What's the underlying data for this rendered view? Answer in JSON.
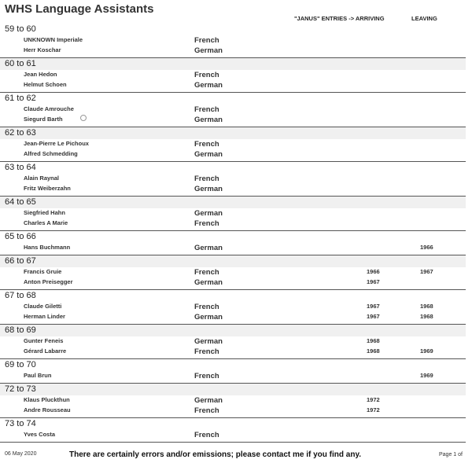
{
  "title": "WHS Language Assistants",
  "columns": {
    "arriving": "\"JANUS\" ENTRIES -> ARRIVING",
    "leaving": "LEAVING"
  },
  "groups": [
    {
      "label": "59 to 60",
      "people": [
        {
          "name": "UNKNOWN  Imperiale",
          "language": "French",
          "arriving": "",
          "leaving": ""
        },
        {
          "name": "Herr  Koschar",
          "language": "German",
          "arriving": "",
          "leaving": ""
        }
      ]
    },
    {
      "label": "60 to 61",
      "people": [
        {
          "name": "Jean  Hedon",
          "language": "French",
          "arriving": "",
          "leaving": ""
        },
        {
          "name": "Helmut  Schoen",
          "language": "German",
          "arriving": "",
          "leaving": ""
        }
      ]
    },
    {
      "label": "61 to 62",
      "people": [
        {
          "name": "Claude  Amrouche",
          "language": "French",
          "arriving": "",
          "leaving": ""
        },
        {
          "name": "Siegurd  Barth",
          "language": "German",
          "arriving": "",
          "leaving": ""
        }
      ]
    },
    {
      "label": "62 to 63",
      "people": [
        {
          "name": "Jean-Pierre  Le Pichoux",
          "language": "French",
          "arriving": "",
          "leaving": ""
        },
        {
          "name": "Alfred  Schmedding",
          "language": "German",
          "arriving": "",
          "leaving": ""
        }
      ]
    },
    {
      "label": "63 to 64",
      "people": [
        {
          "name": "Alain  Raynal",
          "language": "French",
          "arriving": "",
          "leaving": ""
        },
        {
          "name": "Fritz  Weiberzahn",
          "language": "German",
          "arriving": "",
          "leaving": ""
        }
      ]
    },
    {
      "label": "64 to 65",
      "people": [
        {
          "name": "Siegfried  Hahn",
          "language": "German",
          "arriving": "",
          "leaving": ""
        },
        {
          "name": "Charles A  Marie",
          "language": "French",
          "arriving": "",
          "leaving": ""
        }
      ]
    },
    {
      "label": "65 to 66",
      "people": [
        {
          "name": "Hans  Buchmann",
          "language": "German",
          "arriving": "",
          "leaving": "1966"
        }
      ]
    },
    {
      "label": "66 to 67",
      "people": [
        {
          "name": "Francis  Gruie",
          "language": "French",
          "arriving": "1966",
          "leaving": "1967"
        },
        {
          "name": "Anton  Preisegger",
          "language": "German",
          "arriving": "1967",
          "leaving": ""
        }
      ]
    },
    {
      "label": "67 to 68",
      "people": [
        {
          "name": "Claude  Giletti",
          "language": "French",
          "arriving": "1967",
          "leaving": "1968"
        },
        {
          "name": "Herman  Linder",
          "language": "German",
          "arriving": "1967",
          "leaving": "1968"
        }
      ]
    },
    {
      "label": "68 to 69",
      "people": [
        {
          "name": "Gunter  Feneis",
          "language": "German",
          "arriving": "1968",
          "leaving": ""
        },
        {
          "name": "Gérard  Labarre",
          "language": "French",
          "arriving": "1968",
          "leaving": "1969"
        }
      ]
    },
    {
      "label": "69 to 70",
      "people": [
        {
          "name": "Paul  Brun",
          "language": "French",
          "arriving": "",
          "leaving": "1969"
        }
      ]
    },
    {
      "label": "72 to 73",
      "people": [
        {
          "name": "Klaus  Pluckthun",
          "language": "German",
          "arriving": "1972",
          "leaving": ""
        },
        {
          "name": "Andre  Rousseau",
          "language": "French",
          "arriving": "1972",
          "leaving": ""
        }
      ]
    },
    {
      "label": "73 to 74",
      "people": [
        {
          "name": "Yves  Costa",
          "language": "French",
          "arriving": "",
          "leaving": ""
        }
      ]
    }
  ],
  "footer": {
    "date": "06 May 2020",
    "message": "There are certainly errors and/or emissions; please contact me if you find any.",
    "page": "Page 1 of"
  }
}
